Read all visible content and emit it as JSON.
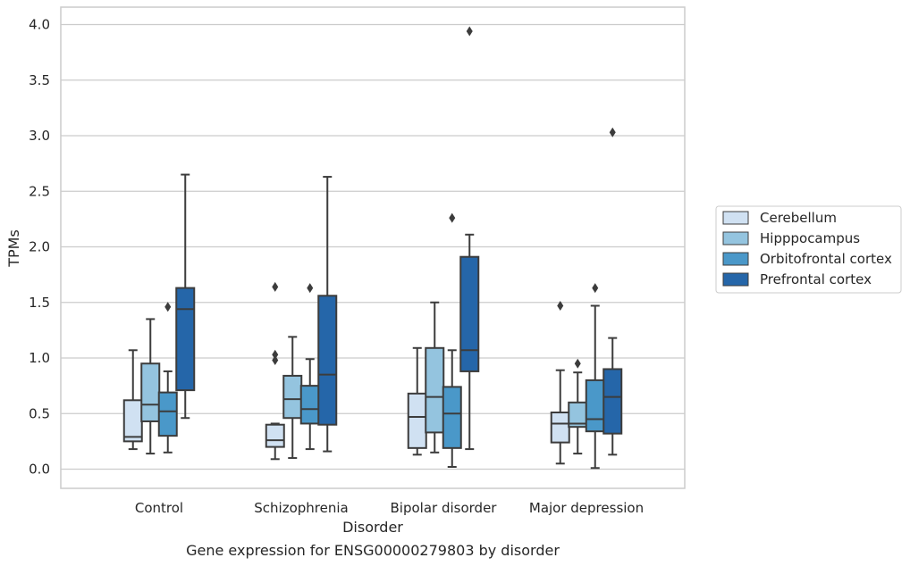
{
  "chart_data": {
    "type": "box",
    "title": "",
    "caption": "Gene expression for ENSG00000279803 by disorder",
    "xlabel": "Disorder",
    "ylabel": "TPMs",
    "ylim": [
      -0.18,
      4.15
    ],
    "yticks": [
      "0.0",
      "0.5",
      "1.0",
      "1.5",
      "2.0",
      "2.5",
      "3.0",
      "3.5",
      "4.0"
    ],
    "grid": "horizontal",
    "legend_position": "right",
    "categories": [
      "Control",
      "Schizophrenia",
      "Bipolar disorder",
      "Major depression"
    ],
    "series": [
      {
        "name": "Cerebellum",
        "color": "#d0e1f2",
        "boxes": [
          {
            "whisker_low": 0.18,
            "q1": 0.25,
            "median": 0.29,
            "q3": 0.62,
            "whisker_high": 1.07,
            "outliers": []
          },
          {
            "whisker_low": 0.09,
            "q1": 0.2,
            "median": 0.26,
            "q3": 0.4,
            "whisker_high": 0.41,
            "outliers": [
              0.98,
              1.03,
              1.64
            ]
          },
          {
            "whisker_low": 0.13,
            "q1": 0.19,
            "median": 0.47,
            "q3": 0.68,
            "whisker_high": 1.09,
            "outliers": []
          },
          {
            "whisker_low": 0.05,
            "q1": 0.24,
            "median": 0.41,
            "q3": 0.51,
            "whisker_high": 0.89,
            "outliers": [
              1.47
            ]
          }
        ]
      },
      {
        "name": "Hipppocampus",
        "color": "#94c4df",
        "boxes": [
          {
            "whisker_low": 0.14,
            "q1": 0.43,
            "median": 0.58,
            "q3": 0.95,
            "whisker_high": 1.35,
            "outliers": []
          },
          {
            "whisker_low": 0.1,
            "q1": 0.46,
            "median": 0.63,
            "q3": 0.84,
            "whisker_high": 1.19,
            "outliers": []
          },
          {
            "whisker_low": 0.15,
            "q1": 0.33,
            "median": 0.65,
            "q3": 1.09,
            "whisker_high": 1.5,
            "outliers": []
          },
          {
            "whisker_low": 0.14,
            "q1": 0.38,
            "median": 0.41,
            "q3": 0.6,
            "whisker_high": 0.87,
            "outliers": [
              0.95
            ]
          }
        ]
      },
      {
        "name": "Orbitofrontal cortex",
        "color": "#4a98c9",
        "boxes": [
          {
            "whisker_low": 0.15,
            "q1": 0.3,
            "median": 0.52,
            "q3": 0.69,
            "whisker_high": 0.88,
            "outliers": [
              1.46
            ]
          },
          {
            "whisker_low": 0.18,
            "q1": 0.41,
            "median": 0.54,
            "q3": 0.75,
            "whisker_high": 0.99,
            "outliers": [
              1.63
            ]
          },
          {
            "whisker_low": 0.02,
            "q1": 0.19,
            "median": 0.5,
            "q3": 0.74,
            "whisker_high": 1.07,
            "outliers": [
              2.26
            ]
          },
          {
            "whisker_low": 0.01,
            "q1": 0.34,
            "median": 0.45,
            "q3": 0.8,
            "whisker_high": 1.47,
            "outliers": [
              1.63
            ]
          }
        ]
      },
      {
        "name": "Prefrontal cortex",
        "color": "#2566a9",
        "boxes": [
          {
            "whisker_low": 0.46,
            "q1": 0.71,
            "median": 1.44,
            "q3": 1.63,
            "whisker_high": 2.65,
            "outliers": []
          },
          {
            "whisker_low": 0.16,
            "q1": 0.4,
            "median": 0.85,
            "q3": 1.56,
            "whisker_high": 2.63,
            "outliers": []
          },
          {
            "whisker_low": 0.18,
            "q1": 0.88,
            "median": 1.07,
            "q3": 1.91,
            "whisker_high": 2.11,
            "outliers": [
              3.94
            ]
          },
          {
            "whisker_low": 0.13,
            "q1": 0.32,
            "median": 0.65,
            "q3": 0.9,
            "whisker_high": 1.18,
            "outliers": [
              3.03
            ]
          }
        ]
      }
    ]
  },
  "colors": {
    "box_edge": "#3c3c3c",
    "grid": "#cccccc",
    "frame": "#cccccc",
    "text": "#262626"
  }
}
